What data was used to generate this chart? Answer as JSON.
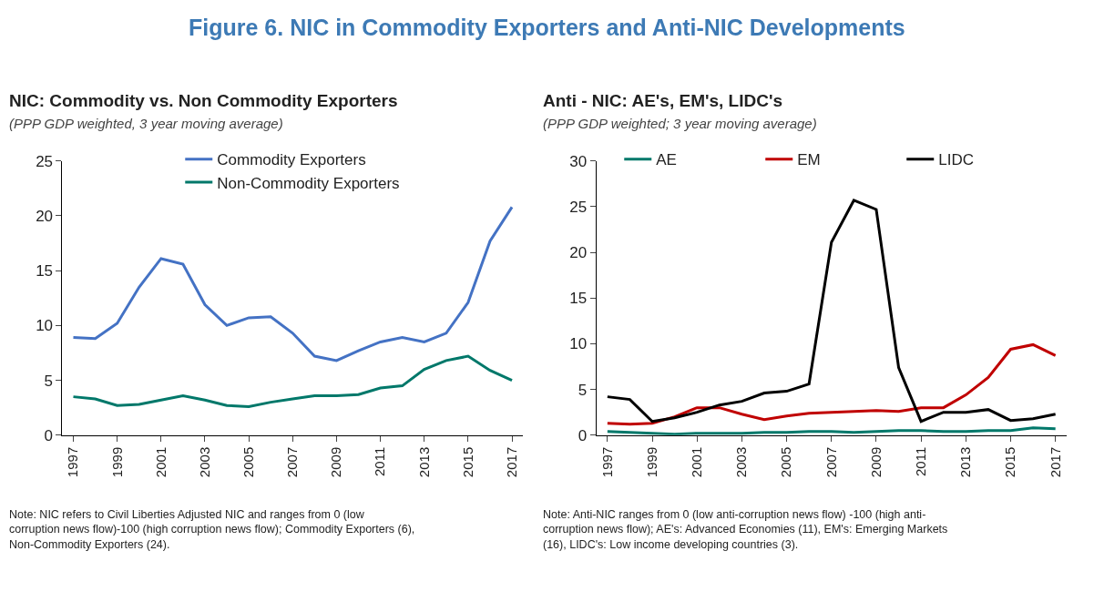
{
  "chart_data": [
    {
      "type": "other",
      "title": "Figure 6. NIC in Commodity Exporters and Anti-NIC Developments"
    },
    {
      "type": "line",
      "title": "NIC: Commodity vs. Non Commodity Exporters",
      "subtitle": "(PPP GDP weighted, 3 year moving average)",
      "x": [
        1997,
        1998,
        1999,
        2000,
        2001,
        2002,
        2003,
        2004,
        2005,
        2006,
        2007,
        2008,
        2009,
        2010,
        2011,
        2012,
        2013,
        2014,
        2015,
        2016,
        2017
      ],
      "series": [
        {
          "name": "Commodity Exporters",
          "color": "#4472c4",
          "values": [
            8.9,
            8.8,
            10.2,
            13.5,
            16.1,
            15.6,
            11.9,
            10.0,
            10.7,
            10.8,
            9.3,
            7.2,
            6.8,
            7.7,
            8.5,
            8.9,
            8.5,
            9.3,
            12.1,
            17.7,
            20.8
          ]
        },
        {
          "name": "Non-Commodity Exporters",
          "color": "#00786a",
          "values": [
            3.5,
            3.3,
            2.7,
            2.8,
            3.2,
            3.6,
            3.2,
            2.7,
            2.6,
            3.0,
            3.3,
            3.6,
            3.6,
            3.7,
            4.3,
            4.5,
            6.0,
            6.8,
            7.2,
            5.9,
            5.0
          ]
        }
      ],
      "xlim": [
        1996.5,
        2017.5
      ],
      "xticks": [
        1997,
        1999,
        2001,
        2003,
        2005,
        2007,
        2009,
        2011,
        2013,
        2015,
        2017
      ],
      "ylim": [
        0,
        25
      ],
      "yticks": [
        0,
        5,
        10,
        15,
        20,
        25
      ],
      "legend": "top",
      "marker": "none",
      "line_style": "solid",
      "annotations": [
        "Note: NIC refers to Civil Liberties Adjusted NIC and ranges from 0 (low corruption news flow)-100 (high corruption news flow); Commodity Exporters (6), Non-Commodity Exporters (24)."
      ]
    },
    {
      "type": "line",
      "title": "Anti - NIC: AE's, EM's, LIDC's",
      "subtitle": "(PPP GDP weighted; 3 year moving average)",
      "x": [
        1997,
        1998,
        1999,
        2000,
        2001,
        2002,
        2003,
        2004,
        2005,
        2006,
        2007,
        2008,
        2009,
        2010,
        2011,
        2012,
        2013,
        2014,
        2015,
        2016,
        2017
      ],
      "series": [
        {
          "name": "AE",
          "color": "#00786a",
          "values": [
            0.4,
            0.3,
            0.2,
            0.1,
            0.2,
            0.2,
            0.2,
            0.3,
            0.3,
            0.4,
            0.4,
            0.3,
            0.4,
            0.5,
            0.5,
            0.4,
            0.4,
            0.5,
            0.5,
            0.8,
            0.7
          ]
        },
        {
          "name": "EM",
          "color": "#c00000",
          "values": [
            1.3,
            1.2,
            1.3,
            2.0,
            3.0,
            3.0,
            2.3,
            1.7,
            2.1,
            2.4,
            2.5,
            2.6,
            2.7,
            2.6,
            3.0,
            3.0,
            4.4,
            6.3,
            9.4,
            9.9,
            8.7
          ]
        },
        {
          "name": "LIDC",
          "color": "#000000",
          "values": [
            4.2,
            3.9,
            1.5,
            1.9,
            2.5,
            3.3,
            3.7,
            4.6,
            4.8,
            5.6,
            21.1,
            25.7,
            24.7,
            7.4,
            1.5,
            2.5,
            2.5,
            2.8,
            1.6,
            1.8,
            2.3
          ]
        }
      ],
      "xlim": [
        1996.5,
        2017.5
      ],
      "xticks": [
        1997,
        1999,
        2001,
        2003,
        2005,
        2007,
        2009,
        2011,
        2013,
        2015,
        2017
      ],
      "ylim": [
        0,
        30
      ],
      "yticks": [
        0,
        5,
        10,
        15,
        20,
        25,
        30
      ],
      "legend": "top",
      "marker": "none",
      "line_style": "solid",
      "annotations": [
        "Note: Anti-NIC ranges from 0 (low anti-corruption news flow) -100 (high anti-corruption news flow); AE's: Advanced Economies (11), EM's: Emerging Markets (16), LIDC's: Low income developing countries (3)."
      ]
    }
  ]
}
